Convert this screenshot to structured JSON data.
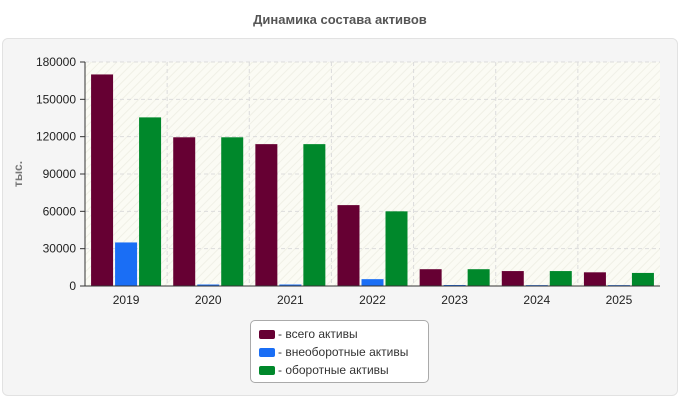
{
  "chart_data": {
    "type": "bar",
    "title": "Динамика состава активов",
    "ylabel": "тыс.",
    "xlabel": "",
    "categories": [
      "2019",
      "2020",
      "2021",
      "2022",
      "2023",
      "2024",
      "2025"
    ],
    "series": [
      {
        "name": "- всего активы",
        "color": "#660033",
        "values": [
          170000,
          119500,
          114000,
          65000,
          13500,
          12000,
          11000
        ]
      },
      {
        "name": "- внеоборотные активы",
        "color": "#1a6ef5",
        "values": [
          35000,
          1200,
          1200,
          5500,
          800,
          700,
          700
        ]
      },
      {
        "name": "- оборотные активы",
        "color": "#00882b",
        "values": [
          135500,
          119500,
          114000,
          60000,
          13500,
          12000,
          10500
        ]
      }
    ],
    "yticks": [
      "0",
      "30000",
      "60000",
      "90000",
      "120000",
      "150000",
      "180000"
    ],
    "ylim": [
      0,
      180000
    ],
    "grid": true,
    "legend_position": "bottom-center"
  }
}
